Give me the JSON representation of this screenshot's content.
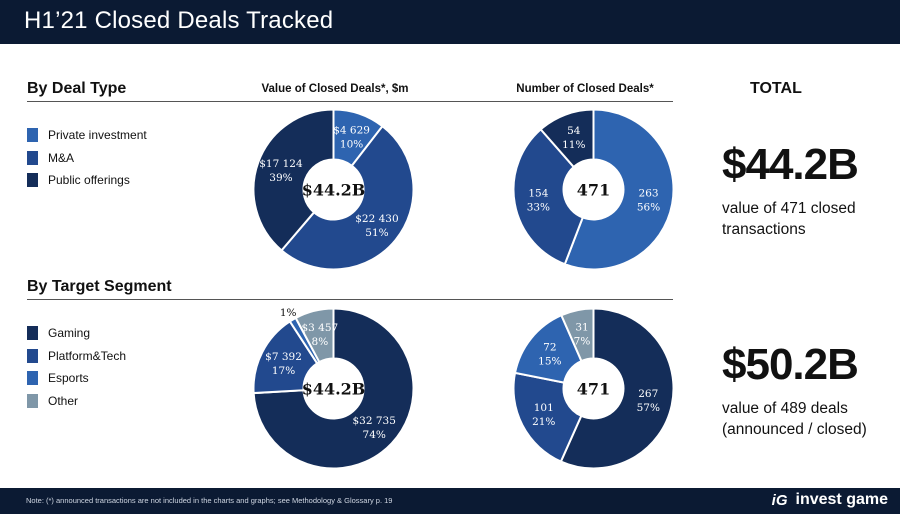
{
  "title": "H1’21 Closed Deals Tracked",
  "by_deal_type": {
    "heading": "By Deal Type",
    "value_header": "Value of Closed Deals*, $m",
    "number_header": "Number of Closed Deals*",
    "legend": [
      {
        "label": "Private investment",
        "color": "#2e64b0"
      },
      {
        "label": "M&A",
        "color": "#22498e"
      },
      {
        "label": "Public offerings",
        "color": "#142d59"
      }
    ]
  },
  "by_target_segment": {
    "heading": "By Target Segment",
    "legend": [
      {
        "label": "Gaming",
        "color": "#142d59"
      },
      {
        "label": "Platform&Tech",
        "color": "#22498e"
      },
      {
        "label": "Esports",
        "color": "#2e64b0"
      },
      {
        "label": "Other",
        "color": "#7f97a8"
      }
    ]
  },
  "total": {
    "heading": "TOTAL",
    "closed_value": "$44.2B",
    "closed_desc_line1": "value of 471 closed",
    "closed_desc_line2": "transactions",
    "announced_value": "$50.2B",
    "announced_desc_line1": "value of 489 deals",
    "announced_desc_line2": "(announced / closed)"
  },
  "footer": {
    "note": "Note: (*) announced transactions are not included in the charts and graphs; see Methodology & Glossary p. 19",
    "logo_mark": "iG",
    "brand": "invest game"
  },
  "chart_data": [
    {
      "type": "pie",
      "center_label": "$44.2B",
      "categories": [
        "Private investment",
        "M&A",
        "Public offerings"
      ],
      "values": [
        4629,
        22430,
        17124
      ],
      "labels": [
        "$4 629",
        "$22 430",
        "$17 124"
      ],
      "percent_labels": [
        "10%",
        "51%",
        "39%"
      ],
      "colors": [
        "#2e64b0",
        "#22498e",
        "#142d59"
      ]
    },
    {
      "type": "pie",
      "center_label": "471",
      "categories": [
        "Private investment",
        "M&A",
        "Public offerings"
      ],
      "values": [
        263,
        154,
        54
      ],
      "labels": [
        "263",
        "154",
        "54"
      ],
      "percent_labels": [
        "56%",
        "33%",
        "11%"
      ],
      "colors": [
        "#2e64b0",
        "#22498e",
        "#142d59"
      ]
    },
    {
      "type": "pie",
      "center_label": "$44.2B",
      "categories": [
        "Gaming",
        "Platform&Tech",
        "Esports",
        "Other"
      ],
      "values": [
        32735,
        7392,
        600,
        3457
      ],
      "labels": [
        "$32 735",
        "$7 392",
        "",
        "$3 457"
      ],
      "percent_labels": [
        "74%",
        "17%",
        "1%",
        "8%"
      ],
      "colors": [
        "#142d59",
        "#22498e",
        "#2e64b0",
        "#7f97a8"
      ]
    },
    {
      "type": "pie",
      "center_label": "471",
      "categories": [
        "Gaming",
        "Platform&Tech",
        "Esports",
        "Other"
      ],
      "values": [
        267,
        101,
        72,
        31
      ],
      "labels": [
        "267",
        "101",
        "72",
        "31"
      ],
      "percent_labels": [
        "57%",
        "21%",
        "15%",
        "7%"
      ],
      "colors": [
        "#142d59",
        "#22498e",
        "#2e64b0",
        "#7f97a8"
      ]
    }
  ]
}
